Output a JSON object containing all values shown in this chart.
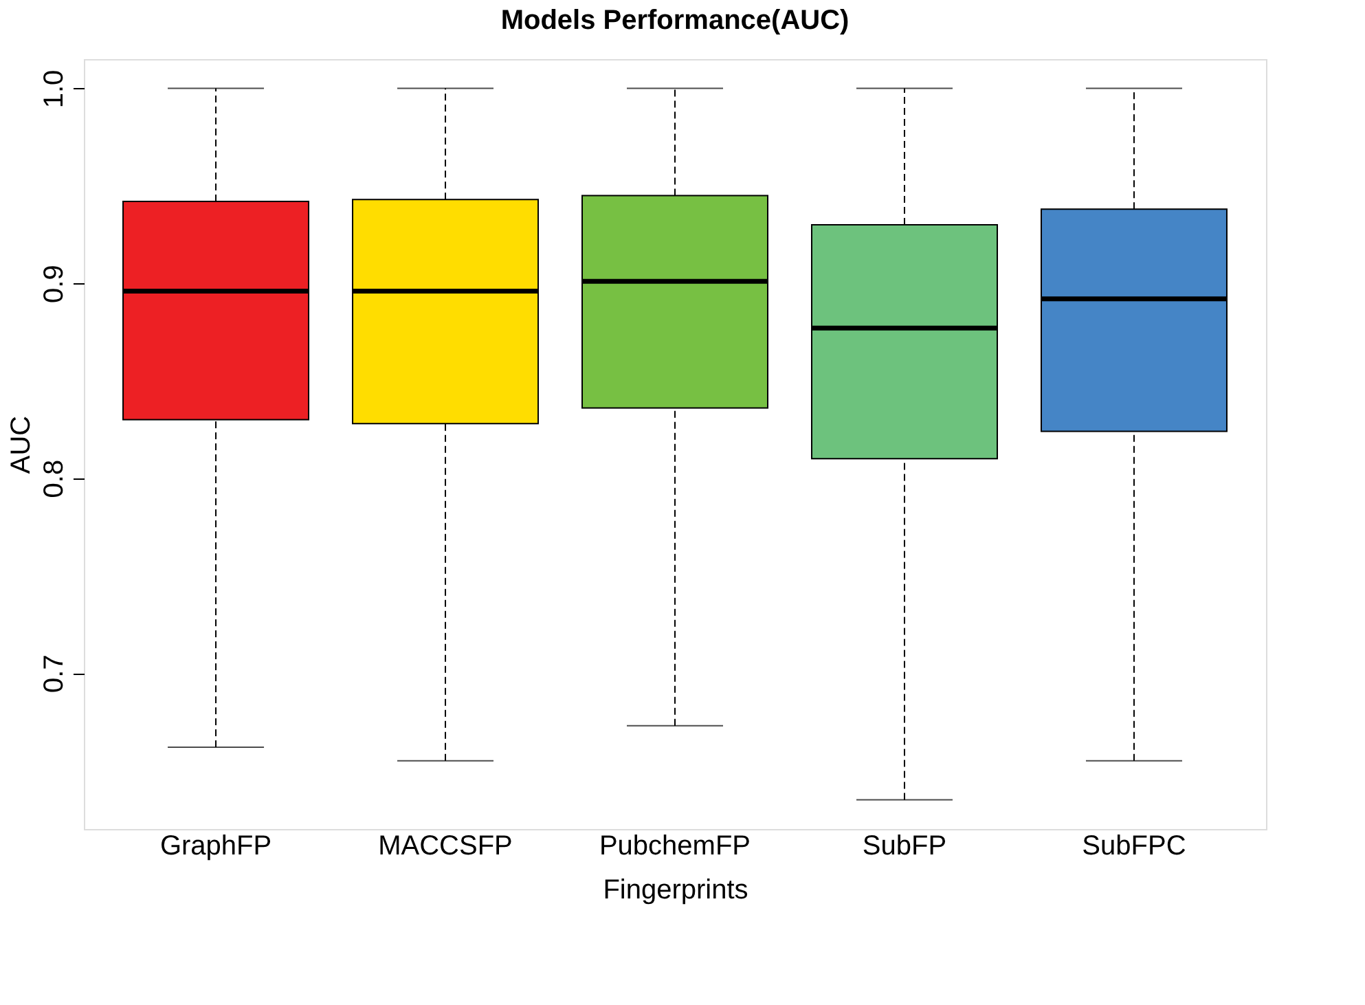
{
  "chart_data": {
    "type": "box",
    "title": "Models Performance(AUC)",
    "xlabel": "Fingerprints",
    "ylabel": "AUC",
    "categories": [
      "GraphFP",
      "MACCSFP",
      "PubchemFP",
      "SubFP",
      "SubFPC"
    ],
    "colors": [
      "#ed2024",
      "#ffdd00",
      "#77c043",
      "#6dc27d",
      "#4585c6"
    ],
    "boxes": [
      {
        "low": 0.662,
        "q1": 0.83,
        "median": 0.896,
        "q3": 0.942,
        "high": 1.0
      },
      {
        "low": 0.655,
        "q1": 0.828,
        "median": 0.896,
        "q3": 0.943,
        "high": 1.0
      },
      {
        "low": 0.673,
        "q1": 0.836,
        "median": 0.901,
        "q3": 0.945,
        "high": 1.0
      },
      {
        "low": 0.635,
        "q1": 0.81,
        "median": 0.877,
        "q3": 0.93,
        "high": 1.0
      },
      {
        "low": 0.655,
        "q1": 0.824,
        "median": 0.892,
        "q3": 0.938,
        "high": 1.0
      }
    ],
    "ylim": [
      0.62,
      1.015
    ],
    "yticks": [
      0.7,
      0.8,
      0.9,
      {
        "value": 1.0,
        "label": "1.0"
      }
    ],
    "grid": false,
    "line_style": "dashed"
  }
}
